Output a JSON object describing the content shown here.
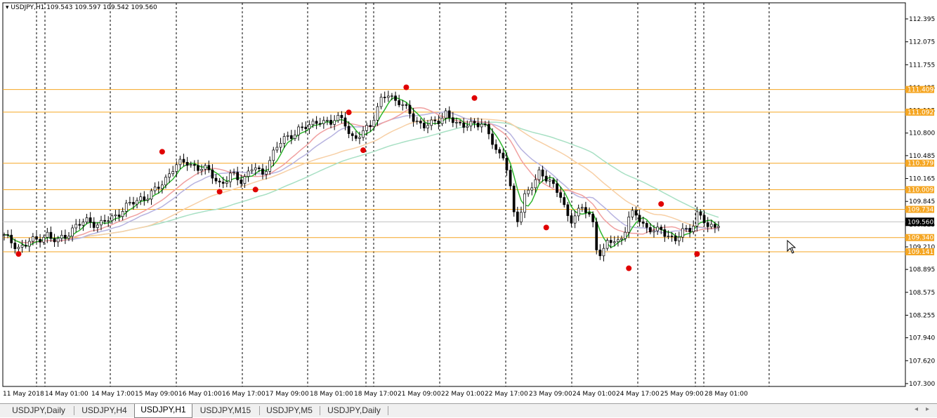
{
  "symbol_header": "USDJPY,H1",
  "ohlc_readout": "109.543 109.597 109.542 109.560",
  "chart_data": {
    "type": "candlestick",
    "symbol": "USDJPY",
    "timeframe": "H1",
    "ylim": [
      107.26,
      112.62
    ],
    "y_ticks": [
      112.395,
      112.075,
      111.755,
      111.435,
      111.115,
      110.8,
      110.485,
      110.165,
      109.845,
      109.525,
      109.21,
      108.895,
      108.575,
      108.255,
      107.94,
      107.62,
      107.3
    ],
    "y_tick_labels": [
      "112.395",
      "112.075",
      "111.755",
      "111.435",
      "111.115",
      "110.800",
      "110.485",
      "110.165",
      "109.845",
      "109.525",
      "109.210",
      "108.895",
      "108.575",
      "108.255",
      "107.940",
      "107.620",
      "107.300"
    ],
    "x_labels": [
      "11 May 2018",
      "14 May 01:00",
      "14 May 17:00",
      "15 May 09:00",
      "16 May 01:00",
      "16 May 17:00",
      "17 May 09:00",
      "18 May 01:00",
      "18 May 17:00",
      "21 May 09:00",
      "22 May 01:00",
      "22 May 17:00",
      "23 May 09:00",
      "24 May 01:00",
      "24 May 17:00",
      "25 May 09:00",
      "28 May 01:00"
    ],
    "current_price": "109.560",
    "horizontal_levels": [
      {
        "price": 111.409,
        "label": "111.409"
      },
      {
        "price": 111.092,
        "label": "111.092"
      },
      {
        "price": 110.379,
        "label": "110.379"
      },
      {
        "price": 110.009,
        "label": "110.009"
      },
      {
        "price": 109.734,
        "label": "109.734"
      },
      {
        "price": 109.34,
        "label": "109.340"
      },
      {
        "price": 109.141,
        "label": "109.141"
      }
    ],
    "close_path": [
      109.35,
      109.3,
      109.25,
      109.2,
      109.22,
      109.3,
      109.3,
      109.35,
      109.4,
      109.3,
      109.28,
      109.35,
      109.4,
      109.45,
      109.5,
      109.55,
      109.6,
      109.55,
      109.5,
      109.55,
      109.6,
      109.65,
      109.7,
      109.75,
      109.8,
      109.85,
      109.9,
      109.9,
      109.95,
      110.0,
      110.1,
      110.2,
      110.3,
      110.35,
      110.38,
      110.4,
      110.35,
      110.3,
      110.3,
      110.25,
      110.2,
      110.1,
      110.1,
      110.2,
      110.2,
      110.15,
      110.2,
      110.3,
      110.3,
      110.2,
      110.35,
      110.5,
      110.6,
      110.7,
      110.75,
      110.8,
      110.85,
      110.85,
      110.9,
      110.95,
      111.0,
      110.95,
      110.9,
      111.0,
      111.05,
      110.95,
      110.7,
      110.7,
      110.8,
      110.9,
      110.95,
      111.1,
      111.3,
      111.35,
      111.3,
      111.25,
      111.15,
      111.1,
      111.0,
      110.95,
      110.9,
      110.9,
      110.95,
      111.0,
      111.1,
      111.0,
      110.9,
      110.9,
      110.95,
      110.95,
      110.9,
      110.9,
      110.85,
      110.7,
      110.5,
      110.45,
      110.2,
      109.7,
      109.6,
      109.9,
      110.0,
      110.1,
      110.3,
      110.2,
      110.1,
      110.0,
      109.9,
      109.7,
      109.6,
      109.65,
      109.75,
      109.7,
      109.6,
      109.1,
      109.1,
      109.3,
      109.3,
      109.3,
      109.4,
      109.6,
      109.7,
      109.6,
      109.5,
      109.45,
      109.4,
      109.45,
      109.4,
      109.35,
      109.3,
      109.4,
      109.45,
      109.5,
      109.7,
      109.6,
      109.45,
      109.5,
      109.56
    ],
    "fractal_highs": [
      {
        "i": 44,
        "price": 110.5
      },
      {
        "i": 96,
        "price": 111.05
      },
      {
        "i": 112,
        "price": 111.4
      },
      {
        "i": 131,
        "price": 111.25
      },
      {
        "i": 183,
        "price": 109.77
      }
    ],
    "fractal_lows": [
      {
        "i": 4,
        "price": 109.15
      },
      {
        "i": 60,
        "price": 110.02
      },
      {
        "i": 70,
        "price": 110.05
      },
      {
        "i": 100,
        "price": 110.6
      },
      {
        "i": 151,
        "price": 109.52
      },
      {
        "i": 174,
        "price": 108.95
      },
      {
        "i": 193,
        "price": 109.15
      }
    ],
    "colors": {
      "level_line": "#f5a623",
      "level_label_bg": "#f5a623",
      "current_label_bg": "#000000",
      "ma_fast": "#2db52d",
      "ma_mid": "#b7b3e0",
      "ma_slow": "#a8e0c4",
      "ma_red": "#f0a0a0",
      "ma_orange": "#f7cfa5",
      "fractal": "#e00000",
      "grid": "#000000"
    }
  },
  "tabs": [
    {
      "label": "USDJPY,Daily",
      "active": false
    },
    {
      "label": "USDJPY,H4",
      "active": false
    },
    {
      "label": "USDJPY,H1",
      "active": true
    },
    {
      "label": "USDJPY,M15",
      "active": false
    },
    {
      "label": "USDJPY,M5",
      "active": false
    },
    {
      "label": "USDJPY,Daily",
      "active": false
    }
  ],
  "scroll_left_icon": "arrow-left-icon",
  "scroll_right_icon": "arrow-right-icon"
}
